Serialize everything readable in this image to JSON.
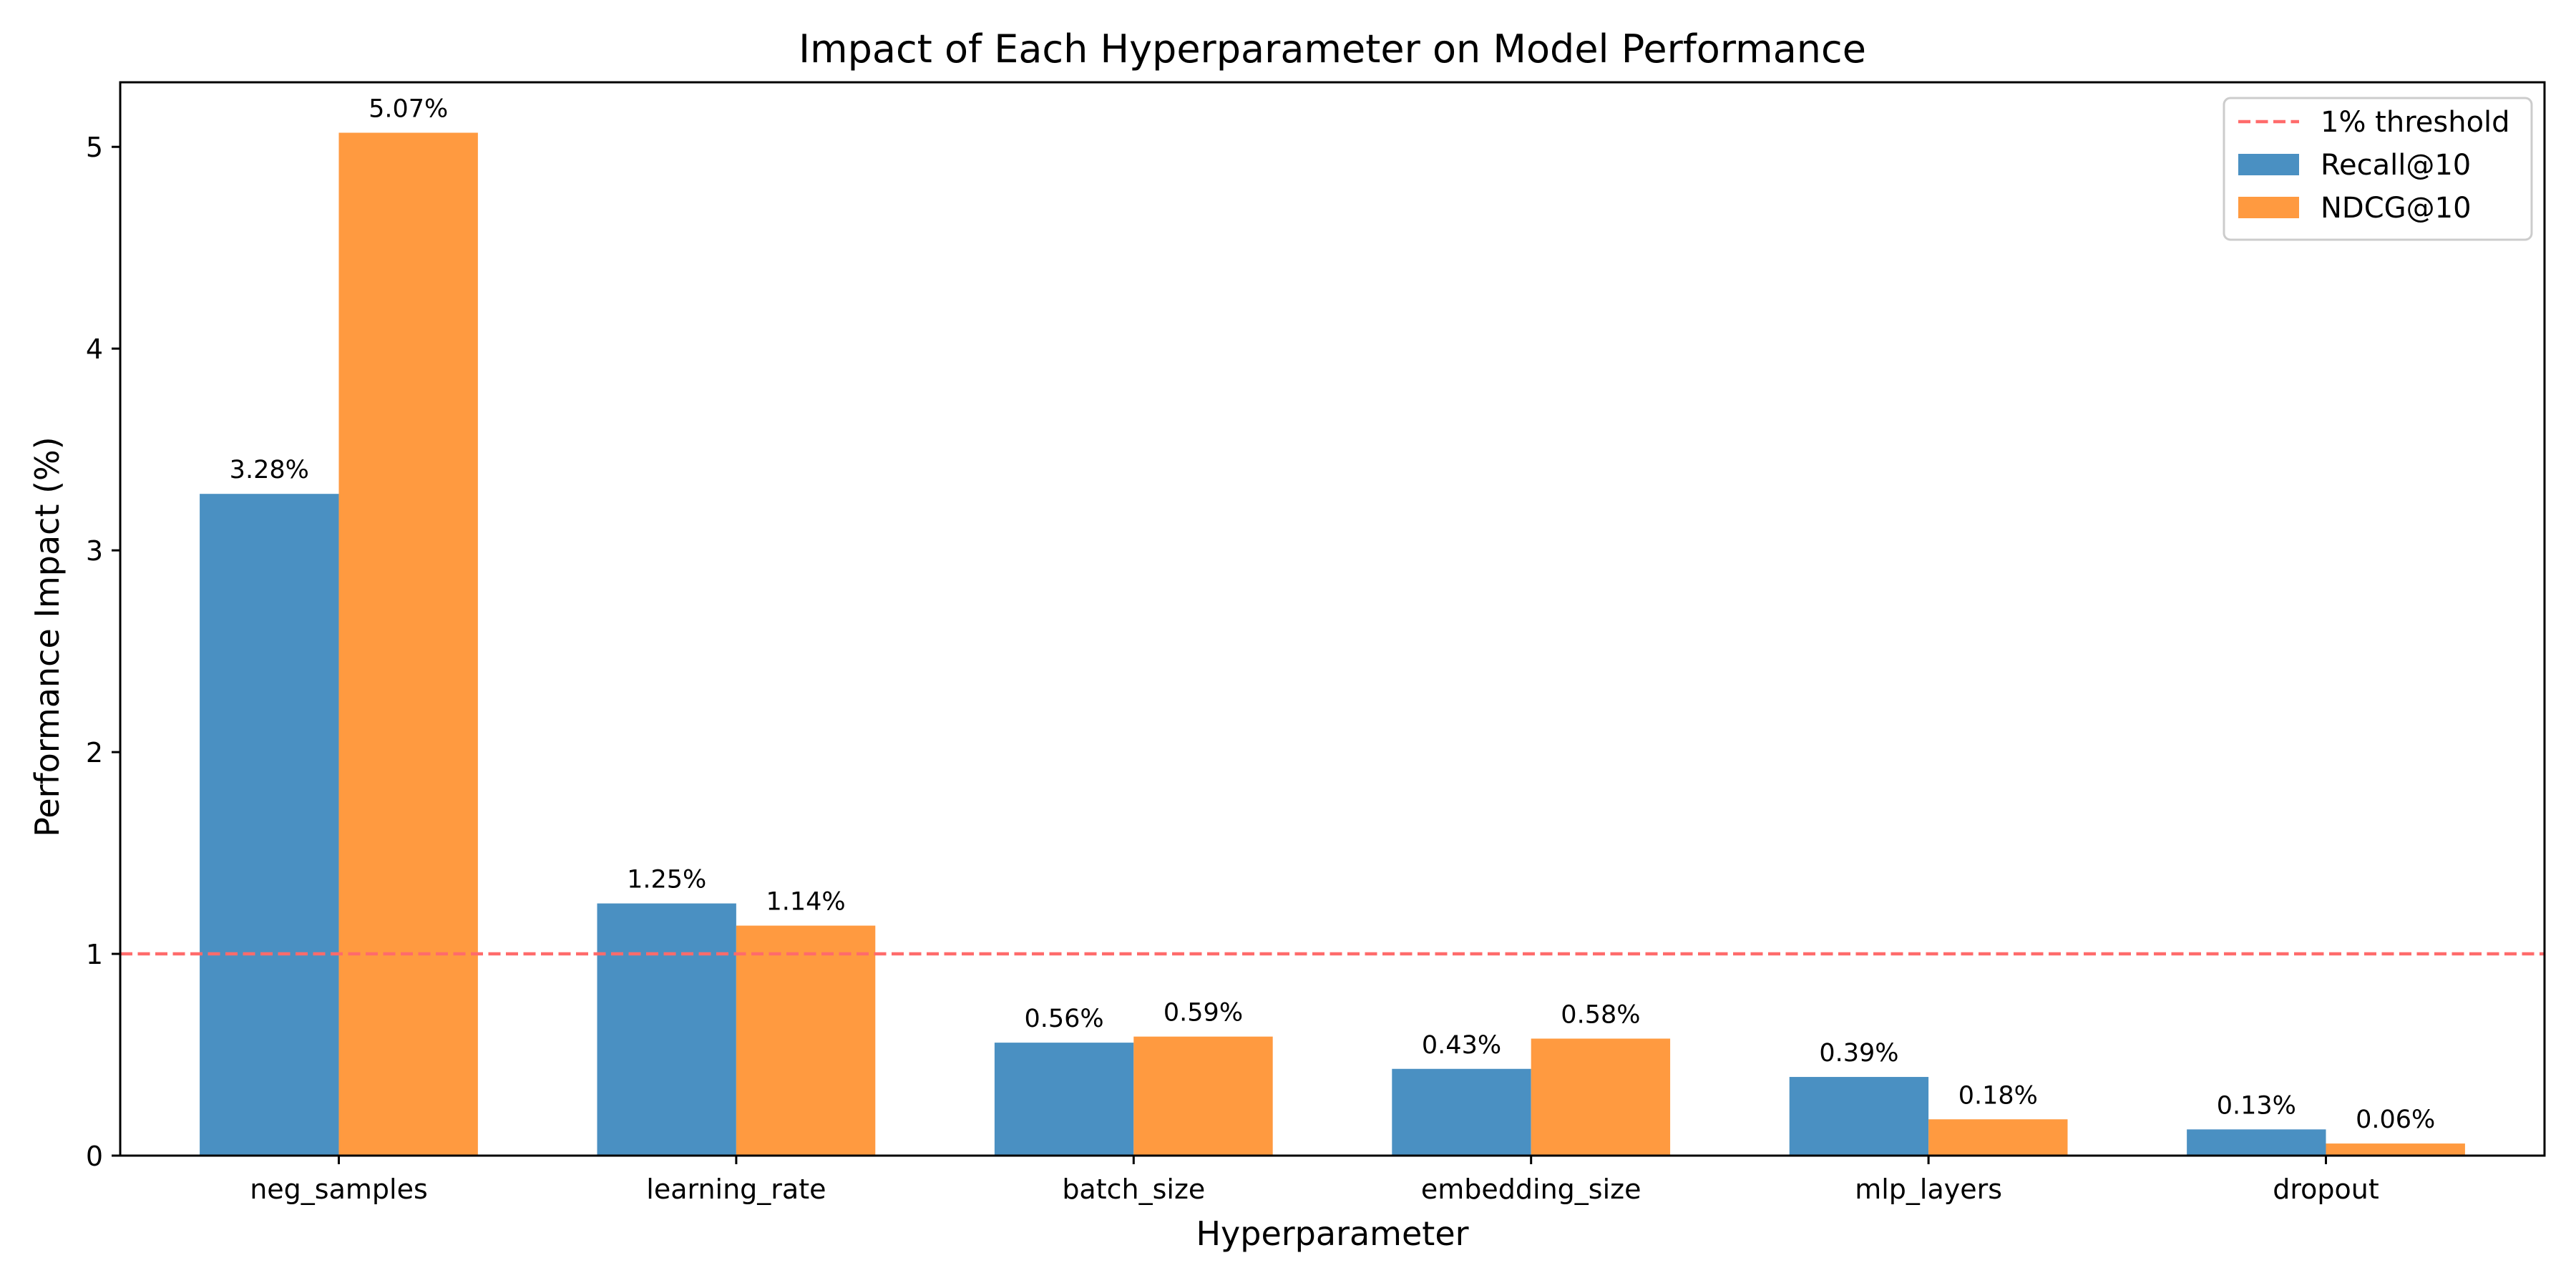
{
  "chart_data": {
    "type": "bar",
    "title": "Impact of Each Hyperparameter on Model Performance",
    "xlabel": "Hyperparameter",
    "ylabel": "Performance Impact (%)",
    "categories": [
      "neg_samples",
      "learning_rate",
      "batch_size",
      "embedding_size",
      "mlp_layers",
      "dropout"
    ],
    "series": [
      {
        "name": "Recall@10",
        "values": [
          3.28,
          1.25,
          0.56,
          0.43,
          0.39,
          0.13
        ],
        "color": "#4a90c2",
        "labels": [
          "3.28%",
          "1.25%",
          "0.56%",
          "0.43%",
          "0.39%",
          "0.13%"
        ]
      },
      {
        "name": "NDCG@10",
        "values": [
          5.07,
          1.14,
          0.59,
          0.58,
          0.18,
          0.06
        ],
        "color": "#ff9a40",
        "labels": [
          "5.07%",
          "1.14%",
          "0.59%",
          "0.58%",
          "0.18%",
          "0.06%"
        ]
      }
    ],
    "threshold": {
      "value": 1,
      "name": "1% threshold",
      "color": "#ff6b6b",
      "style": "dashed"
    },
    "ylim": [
      0,
      5.32
    ],
    "yticks": [
      0,
      1,
      2,
      3,
      4,
      5
    ],
    "ytick_labels": [
      "0",
      "1",
      "2",
      "3",
      "4",
      "5"
    ],
    "grid": false,
    "legend_position": "top-right"
  }
}
